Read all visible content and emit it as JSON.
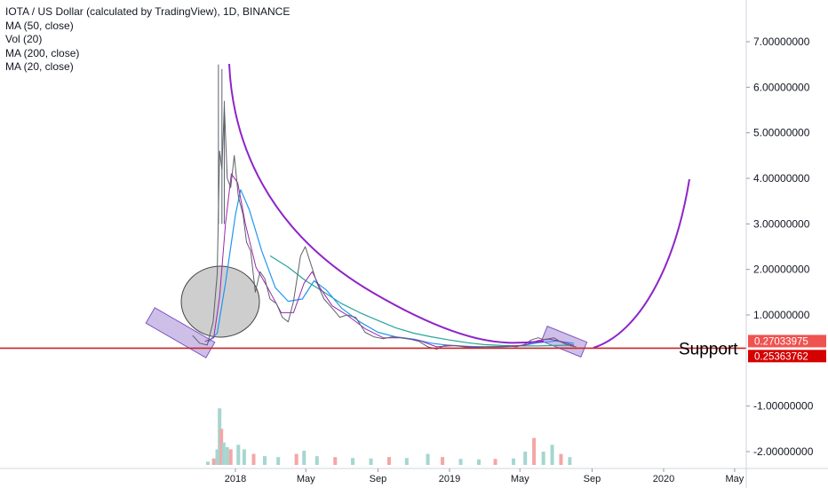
{
  "title": "IOTA / US Dollar (calculated by TradingView), 1D, BINANCE",
  "indicators": [
    "MA (50, close)",
    "Vol (20)",
    "MA (200, close)",
    "MA (20, close)"
  ],
  "colors": {
    "price": "#5d606b",
    "ma50": "#2196f3",
    "ma200": "#26a69a",
    "ma20": "#9c27b0",
    "curve": "#8e24c8",
    "support": "#c62828",
    "zone_fill": "#b39ddb",
    "volume_up": "#a5d6d0",
    "volume_down": "#f4a6a6"
  },
  "annotations": {
    "support_label": "Support",
    "price_badge_1": "0.27033975",
    "price_badge_2": "0.25363762"
  },
  "chart_data": {
    "type": "line",
    "title": "IOTA / US Dollar (calculated by TradingView), 1D, BINANCE",
    "xlabel": "",
    "ylabel": "",
    "x_ticks": [
      "2018",
      "May",
      "Sep",
      "2019",
      "May",
      "Sep",
      "2020",
      "May"
    ],
    "y_ticks": [
      "7.00000000",
      "6.00000000",
      "5.00000000",
      "4.00000000",
      "3.00000000",
      "2.00000000",
      "1.00000000",
      "-1.00000000",
      "-2.00000000"
    ],
    "ylim": [
      -2.25,
      7.6
    ],
    "grid": false,
    "series": [
      {
        "name": "IOTA / US Dollar",
        "points": [
          {
            "x": "2017-10-20",
            "y": 0.55
          },
          {
            "x": "2017-11-01",
            "y": 0.38
          },
          {
            "x": "2017-11-14",
            "y": 0.34
          },
          {
            "x": "2017-11-24",
            "y": 0.85
          },
          {
            "x": "2017-12-01",
            "y": 1.9
          },
          {
            "x": "2017-12-05",
            "y": 4.6
          },
          {
            "x": "2017-12-09",
            "y": 4.2
          },
          {
            "x": "2017-12-13",
            "y": 5.6
          },
          {
            "x": "2017-12-18",
            "y": 4.0
          },
          {
            "x": "2017-12-24",
            "y": 3.8
          },
          {
            "x": "2017-12-30",
            "y": 4.5
          },
          {
            "x": "2018-01-06",
            "y": 3.6
          },
          {
            "x": "2018-01-14",
            "y": 3.2
          },
          {
            "x": "2018-01-20",
            "y": 2.6
          },
          {
            "x": "2018-01-27",
            "y": 2.4
          },
          {
            "x": "2018-02-04",
            "y": 1.5
          },
          {
            "x": "2018-02-12",
            "y": 1.95
          },
          {
            "x": "2018-02-20",
            "y": 1.8
          },
          {
            "x": "2018-03-01",
            "y": 1.35
          },
          {
            "x": "2018-03-12",
            "y": 1.25
          },
          {
            "x": "2018-03-22",
            "y": 0.95
          },
          {
            "x": "2018-04-01",
            "y": 0.85
          },
          {
            "x": "2018-04-10",
            "y": 1.3
          },
          {
            "x": "2018-04-22",
            "y": 2.3
          },
          {
            "x": "2018-04-30",
            "y": 2.5
          },
          {
            "x": "2018-05-10",
            "y": 2.1
          },
          {
            "x": "2018-05-20",
            "y": 1.7
          },
          {
            "x": "2018-06-01",
            "y": 1.35
          },
          {
            "x": "2018-06-15",
            "y": 1.15
          },
          {
            "x": "2018-06-28",
            "y": 0.95
          },
          {
            "x": "2018-07-10",
            "y": 1.0
          },
          {
            "x": "2018-07-25",
            "y": 0.95
          },
          {
            "x": "2018-08-10",
            "y": 0.62
          },
          {
            "x": "2018-08-25",
            "y": 0.52
          },
          {
            "x": "2018-09-10",
            "y": 0.48
          },
          {
            "x": "2018-09-25",
            "y": 0.52
          },
          {
            "x": "2018-10-10",
            "y": 0.5
          },
          {
            "x": "2018-10-25",
            "y": 0.47
          },
          {
            "x": "2018-11-10",
            "y": 0.42
          },
          {
            "x": "2018-11-25",
            "y": 0.3
          },
          {
            "x": "2018-12-10",
            "y": 0.25
          },
          {
            "x": "2018-12-25",
            "y": 0.34
          },
          {
            "x": "2019-01-10",
            "y": 0.33
          },
          {
            "x": "2019-01-25",
            "y": 0.3
          },
          {
            "x": "2019-02-10",
            "y": 0.27
          },
          {
            "x": "2019-02-25",
            "y": 0.3
          },
          {
            "x": "2019-03-10",
            "y": 0.3
          },
          {
            "x": "2019-03-25",
            "y": 0.3
          },
          {
            "x": "2019-04-10",
            "y": 0.32
          },
          {
            "x": "2019-04-25",
            "y": 0.3
          },
          {
            "x": "2019-05-10",
            "y": 0.36
          },
          {
            "x": "2019-05-20",
            "y": 0.45
          },
          {
            "x": "2019-06-01",
            "y": 0.5
          },
          {
            "x": "2019-06-10",
            "y": 0.46
          },
          {
            "x": "2019-06-20",
            "y": 0.48
          },
          {
            "x": "2019-06-28",
            "y": 0.5
          },
          {
            "x": "2019-07-08",
            "y": 0.42
          },
          {
            "x": "2019-07-18",
            "y": 0.36
          },
          {
            "x": "2019-07-28",
            "y": 0.32
          },
          {
            "x": "2019-08-05",
            "y": 0.3
          }
        ]
      },
      {
        "name": "MA (20, close)",
        "points": [
          {
            "x": "2017-11-10",
            "y": 0.42
          },
          {
            "x": "2017-11-25",
            "y": 0.5
          },
          {
            "x": "2017-12-05",
            "y": 1.4
          },
          {
            "x": "2017-12-15",
            "y": 3.0
          },
          {
            "x": "2017-12-25",
            "y": 4.1
          },
          {
            "x": "2018-01-05",
            "y": 3.9
          },
          {
            "x": "2018-01-18",
            "y": 3.0
          },
          {
            "x": "2018-02-05",
            "y": 2.05
          },
          {
            "x": "2018-02-25",
            "y": 1.6
          },
          {
            "x": "2018-03-20",
            "y": 1.05
          },
          {
            "x": "2018-04-10",
            "y": 1.05
          },
          {
            "x": "2018-04-28",
            "y": 1.7
          },
          {
            "x": "2018-05-12",
            "y": 1.95
          },
          {
            "x": "2018-05-25",
            "y": 1.6
          },
          {
            "x": "2018-06-15",
            "y": 1.2
          },
          {
            "x": "2018-07-10",
            "y": 1.0
          },
          {
            "x": "2018-08-10",
            "y": 0.7
          },
          {
            "x": "2018-09-10",
            "y": 0.5
          },
          {
            "x": "2018-10-10",
            "y": 0.5
          },
          {
            "x": "2018-11-10",
            "y": 0.44
          },
          {
            "x": "2018-12-10",
            "y": 0.3
          },
          {
            "x": "2019-01-10",
            "y": 0.33
          },
          {
            "x": "2019-02-10",
            "y": 0.29
          },
          {
            "x": "2019-03-10",
            "y": 0.3
          },
          {
            "x": "2019-04-10",
            "y": 0.31
          },
          {
            "x": "2019-05-10",
            "y": 0.34
          },
          {
            "x": "2019-06-01",
            "y": 0.44
          },
          {
            "x": "2019-06-20",
            "y": 0.47
          },
          {
            "x": "2019-07-10",
            "y": 0.42
          },
          {
            "x": "2019-08-01",
            "y": 0.33
          }
        ]
      },
      {
        "name": "MA (50, close)",
        "points": [
          {
            "x": "2017-11-15",
            "y": 0.4
          },
          {
            "x": "2017-12-01",
            "y": 0.6
          },
          {
            "x": "2017-12-15",
            "y": 1.7
          },
          {
            "x": "2018-01-01",
            "y": 3.2
          },
          {
            "x": "2018-01-10",
            "y": 3.75
          },
          {
            "x": "2018-01-25",
            "y": 3.3
          },
          {
            "x": "2018-02-15",
            "y": 2.4
          },
          {
            "x": "2018-03-10",
            "y": 1.6
          },
          {
            "x": "2018-04-01",
            "y": 1.3
          },
          {
            "x": "2018-04-25",
            "y": 1.35
          },
          {
            "x": "2018-05-15",
            "y": 1.75
          },
          {
            "x": "2018-06-05",
            "y": 1.55
          },
          {
            "x": "2018-07-01",
            "y": 1.15
          },
          {
            "x": "2018-08-01",
            "y": 0.85
          },
          {
            "x": "2018-09-01",
            "y": 0.62
          },
          {
            "x": "2018-10-01",
            "y": 0.52
          },
          {
            "x": "2018-11-01",
            "y": 0.47
          },
          {
            "x": "2018-12-01",
            "y": 0.38
          },
          {
            "x": "2019-01-01",
            "y": 0.33
          },
          {
            "x": "2019-02-01",
            "y": 0.31
          },
          {
            "x": "2019-03-01",
            "y": 0.3
          },
          {
            "x": "2019-04-01",
            "y": 0.3
          },
          {
            "x": "2019-05-01",
            "y": 0.32
          },
          {
            "x": "2019-06-01",
            "y": 0.39
          },
          {
            "x": "2019-07-01",
            "y": 0.43
          },
          {
            "x": "2019-08-01",
            "y": 0.38
          }
        ]
      },
      {
        "name": "MA (200, close)",
        "points": [
          {
            "x": "2018-03-01",
            "y": 2.3
          },
          {
            "x": "2018-04-01",
            "y": 2.05
          },
          {
            "x": "2018-05-01",
            "y": 1.75
          },
          {
            "x": "2018-06-01",
            "y": 1.5
          },
          {
            "x": "2018-07-01",
            "y": 1.25
          },
          {
            "x": "2018-08-01",
            "y": 1.05
          },
          {
            "x": "2018-09-01",
            "y": 0.88
          },
          {
            "x": "2018-10-01",
            "y": 0.72
          },
          {
            "x": "2018-11-01",
            "y": 0.6
          },
          {
            "x": "2018-12-01",
            "y": 0.52
          },
          {
            "x": "2019-01-01",
            "y": 0.45
          },
          {
            "x": "2019-02-01",
            "y": 0.39
          },
          {
            "x": "2019-03-01",
            "y": 0.35
          },
          {
            "x": "2019-04-01",
            "y": 0.33
          },
          {
            "x": "2019-05-01",
            "y": 0.32
          },
          {
            "x": "2019-06-01",
            "y": 0.32
          },
          {
            "x": "2019-07-01",
            "y": 0.33
          },
          {
            "x": "2019-08-01",
            "y": 0.34
          }
        ]
      },
      {
        "name": "Vol (20)",
        "type": "bar",
        "points": [
          {
            "x": "2017-11-15",
            "y": -2.22
          },
          {
            "x": "2017-11-25",
            "y": -2.15
          },
          {
            "x": "2017-12-01",
            "y": -1.95
          },
          {
            "x": "2017-12-05",
            "y": -1.05
          },
          {
            "x": "2017-12-08",
            "y": -1.5
          },
          {
            "x": "2017-12-12",
            "y": -1.8
          },
          {
            "x": "2017-12-18",
            "y": -1.9
          },
          {
            "x": "2017-12-24",
            "y": -1.95
          },
          {
            "x": "2018-01-06",
            "y": -1.85
          },
          {
            "x": "2018-01-16",
            "y": -1.95
          },
          {
            "x": "2018-02-01",
            "y": -2.05
          },
          {
            "x": "2018-02-20",
            "y": -2.1
          },
          {
            "x": "2018-03-15",
            "y": -2.12
          },
          {
            "x": "2018-04-15",
            "y": -2.05
          },
          {
            "x": "2018-04-28",
            "y": -1.98
          },
          {
            "x": "2018-05-20",
            "y": -2.1
          },
          {
            "x": "2018-06-20",
            "y": -2.12
          },
          {
            "x": "2018-07-20",
            "y": -2.14
          },
          {
            "x": "2018-08-20",
            "y": -2.15
          },
          {
            "x": "2018-09-20",
            "y": -2.12
          },
          {
            "x": "2018-10-20",
            "y": -2.14
          },
          {
            "x": "2018-11-25",
            "y": -2.05
          },
          {
            "x": "2018-12-20",
            "y": -2.12
          },
          {
            "x": "2019-01-20",
            "y": -2.16
          },
          {
            "x": "2019-02-20",
            "y": -2.17
          },
          {
            "x": "2019-03-20",
            "y": -2.16
          },
          {
            "x": "2019-04-20",
            "y": -2.15
          },
          {
            "x": "2019-05-10",
            "y": -2.0
          },
          {
            "x": "2019-05-25",
            "y": -1.7
          },
          {
            "x": "2019-06-10",
            "y": -2.0
          },
          {
            "x": "2019-06-25",
            "y": -1.85
          },
          {
            "x": "2019-07-10",
            "y": -2.05
          },
          {
            "x": "2019-07-25",
            "y": -2.12
          }
        ]
      }
    ]
  }
}
